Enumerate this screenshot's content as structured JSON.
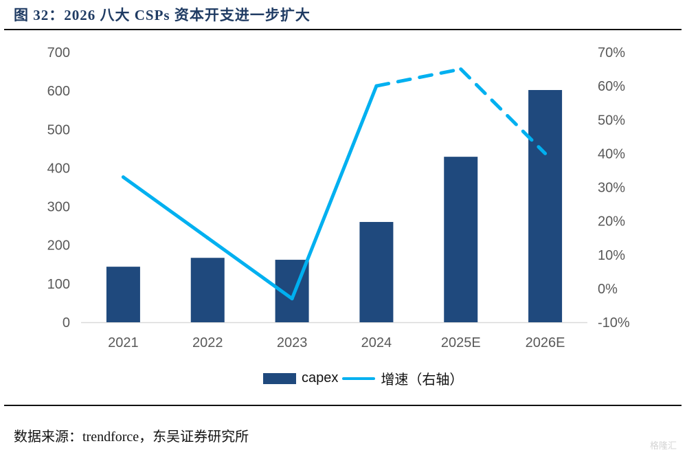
{
  "figure": {
    "title": "图 32：2026 八大 CSPs 资本开支进一步扩大",
    "source": "数据来源：trendforce，东吴证券研究所",
    "watermark": "格隆汇"
  },
  "colors": {
    "bar": "#1f497d",
    "line": "#00b0f0",
    "axis": "#d9d9d9",
    "tick_text": "#595959",
    "title": "#1f3b63"
  },
  "chart_data": {
    "type": "bar",
    "title": "2026 八大 CSPs 资本开支进一步扩大",
    "categories": [
      "2021",
      "2022",
      "2023",
      "2024",
      "2025E",
      "2026E"
    ],
    "series": [
      {
        "name": "capex",
        "type": "bar",
        "axis": "left",
        "values": [
          144,
          167,
          162,
          260,
          429,
          602
        ]
      },
      {
        "name": "增速（右轴）",
        "type": "line",
        "axis": "right",
        "values": [
          33,
          15,
          -3,
          60,
          65,
          40
        ],
        "unit": "%",
        "dashed_from_index": 3
      }
    ],
    "y_left": {
      "ylim": [
        0,
        700
      ],
      "ticks": [
        "0",
        "100",
        "200",
        "300",
        "400",
        "500",
        "600",
        "700"
      ]
    },
    "y_right": {
      "ylim": [
        -10,
        70
      ],
      "ticks": [
        "-10%",
        "0%",
        "10%",
        "20%",
        "30%",
        "40%",
        "50%",
        "60%",
        "70%"
      ]
    },
    "xlabel": "",
    "ylabel": "",
    "grid": false,
    "legend": {
      "position": "bottom",
      "entries": [
        "capex",
        "增速（右轴）"
      ]
    }
  }
}
